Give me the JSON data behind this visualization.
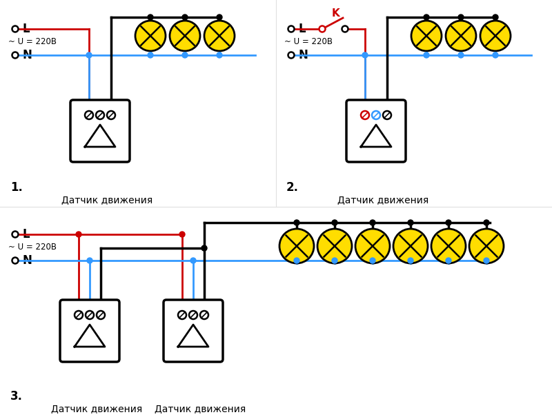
{
  "bg_color": "#ffffff",
  "line_color_black": "#000000",
  "line_color_red": "#cc0000",
  "line_color_blue": "#3399ff",
  "lamp_fill": "#ffdd00",
  "lamp_edge": "#000000",
  "label_L": "L",
  "label_N": "N",
  "label_U": "~ U = 220B",
  "label_sensor": "Датчик движения",
  "label_K": "K",
  "label_1": "1.",
  "label_2": "2.",
  "label_3": "3."
}
